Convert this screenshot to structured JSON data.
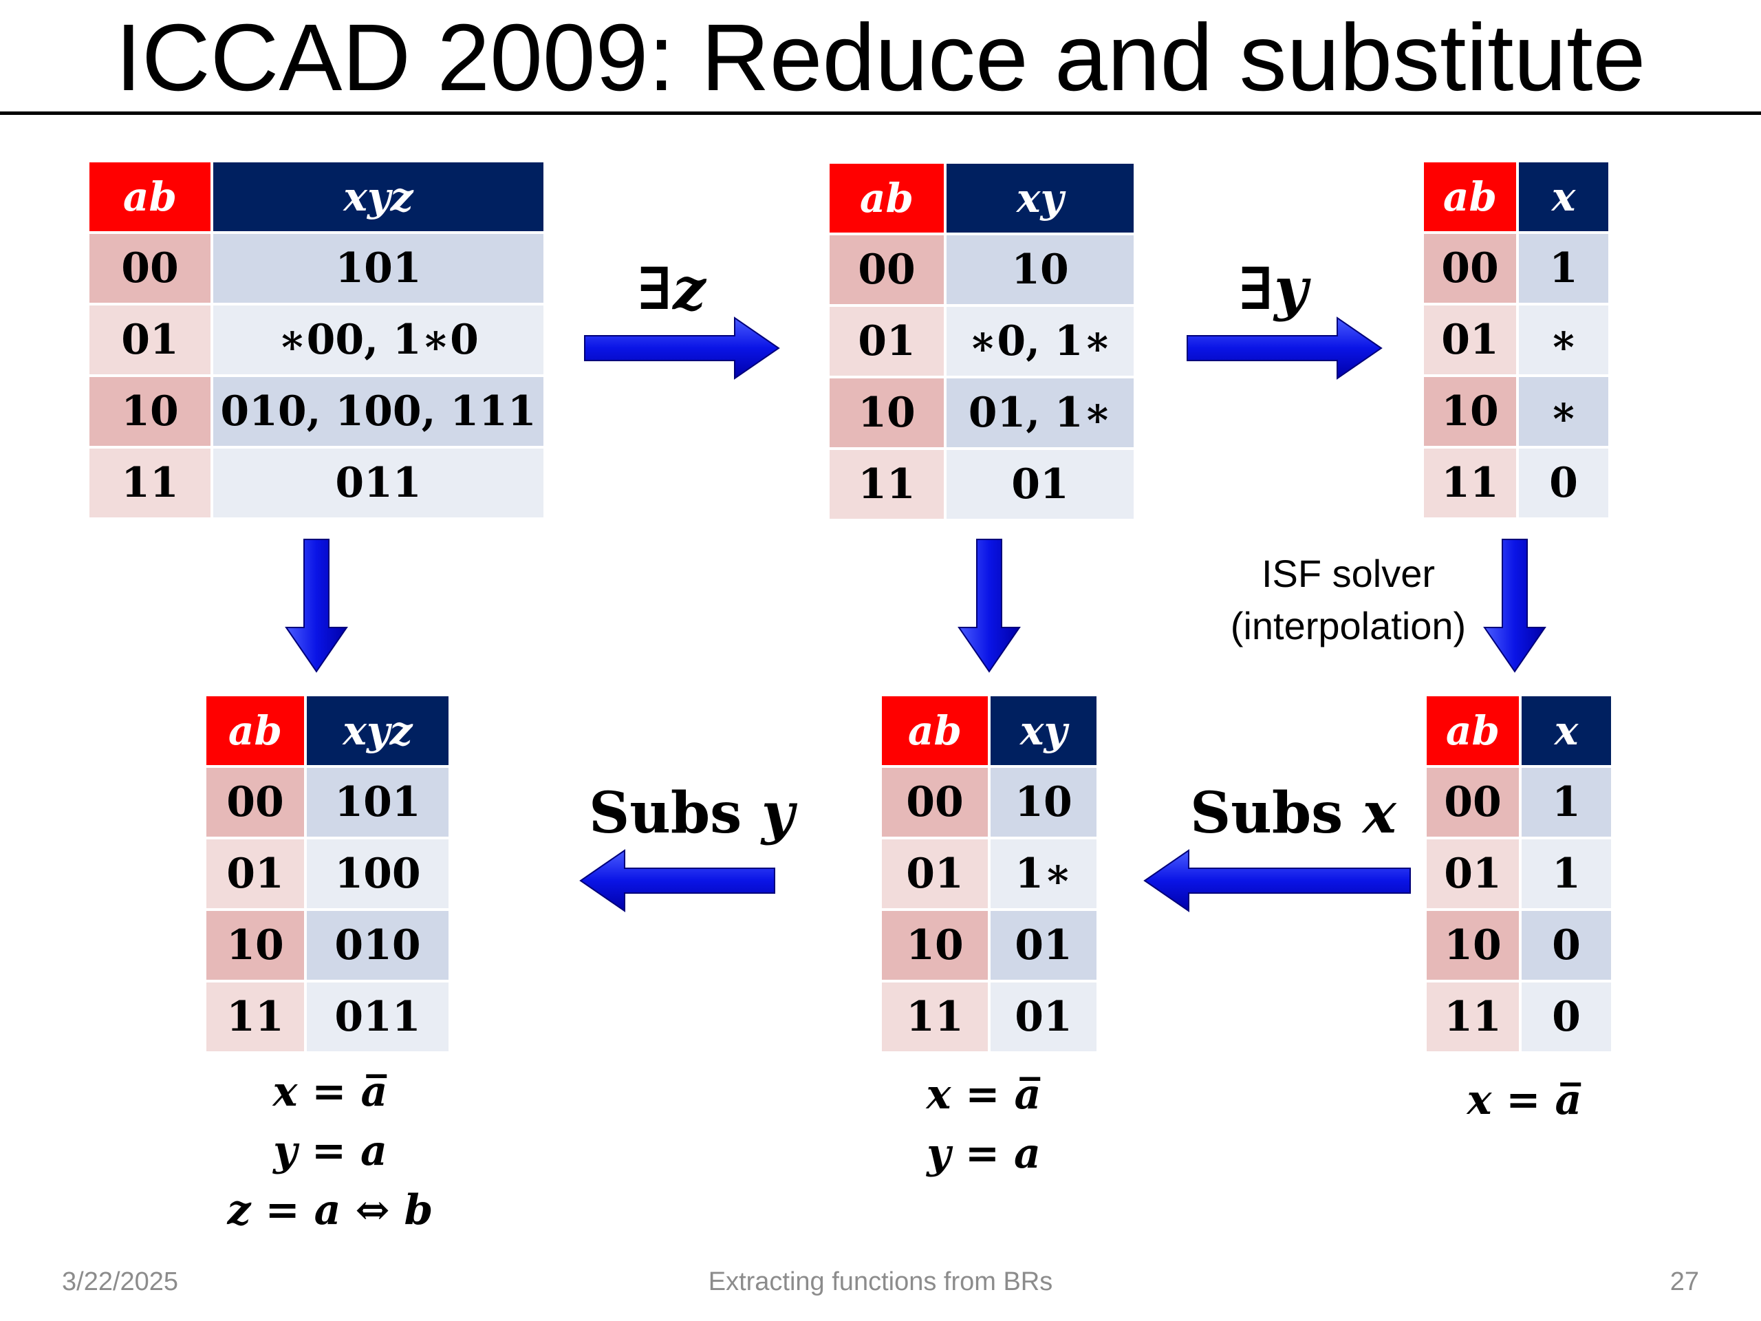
{
  "slide": {
    "title": "ICCAD 2009: Reduce and substitute",
    "footer": {
      "date": "3/22/2025",
      "caption": "Extracting functions from BRs",
      "page": "27"
    }
  },
  "tables": {
    "t1": {
      "h1": "ab",
      "h2": "xyz",
      "rows": [
        {
          "ab": "00",
          "val": "101"
        },
        {
          "ab": "01",
          "val": "∗00, 1∗0"
        },
        {
          "ab": "10",
          "val": "010, 100, 111"
        },
        {
          "ab": "11",
          "val": "011"
        }
      ]
    },
    "t2": {
      "h1": "ab",
      "h2": "xy",
      "rows": [
        {
          "ab": "00",
          "val": "10"
        },
        {
          "ab": "01",
          "val": "∗0, 1∗"
        },
        {
          "ab": "10",
          "val": "01, 1∗"
        },
        {
          "ab": "11",
          "val": "01"
        }
      ]
    },
    "t3": {
      "h1": "ab",
      "h2": "x",
      "rows": [
        {
          "ab": "00",
          "val": "1"
        },
        {
          "ab": "01",
          "val": "∗"
        },
        {
          "ab": "10",
          "val": "∗"
        },
        {
          "ab": "11",
          "val": "0"
        }
      ]
    },
    "t4": {
      "h1": "ab",
      "h2": "xyz",
      "rows": [
        {
          "ab": "00",
          "val": "101"
        },
        {
          "ab": "01",
          "val": "100"
        },
        {
          "ab": "10",
          "val": "010"
        },
        {
          "ab": "11",
          "val": "011"
        }
      ]
    },
    "t5": {
      "h1": "ab",
      "h2": "xy",
      "rows": [
        {
          "ab": "00",
          "val": "10"
        },
        {
          "ab": "01",
          "val": "1∗"
        },
        {
          "ab": "10",
          "val": "01"
        },
        {
          "ab": "11",
          "val": "01"
        }
      ]
    },
    "t6": {
      "h1": "ab",
      "h2": "x",
      "rows": [
        {
          "ab": "00",
          "val": "1"
        },
        {
          "ab": "01",
          "val": "1"
        },
        {
          "ab": "10",
          "val": "0"
        },
        {
          "ab": "11",
          "val": "0"
        }
      ]
    }
  },
  "arrows": {
    "exists_z": {
      "sym": "∃",
      "var": "z"
    },
    "exists_y": {
      "sym": "∃",
      "var": "y"
    },
    "subs_y": {
      "word": "Subs",
      "var": "y"
    },
    "subs_x": {
      "word": "Subs",
      "var": "x"
    }
  },
  "isf_note": {
    "line1": "ISF solver",
    "line2": "(interpolation)"
  },
  "equations": {
    "left": [
      "x = a̅",
      "y = a",
      "z = a ⇔ b"
    ],
    "middle": [
      "x = a̅",
      "y = a"
    ],
    "right": [
      "x = a̅"
    ]
  },
  "colors": {
    "header_ab": "#ff0000",
    "header_val": "#002060",
    "arrow": "#1010e0"
  }
}
